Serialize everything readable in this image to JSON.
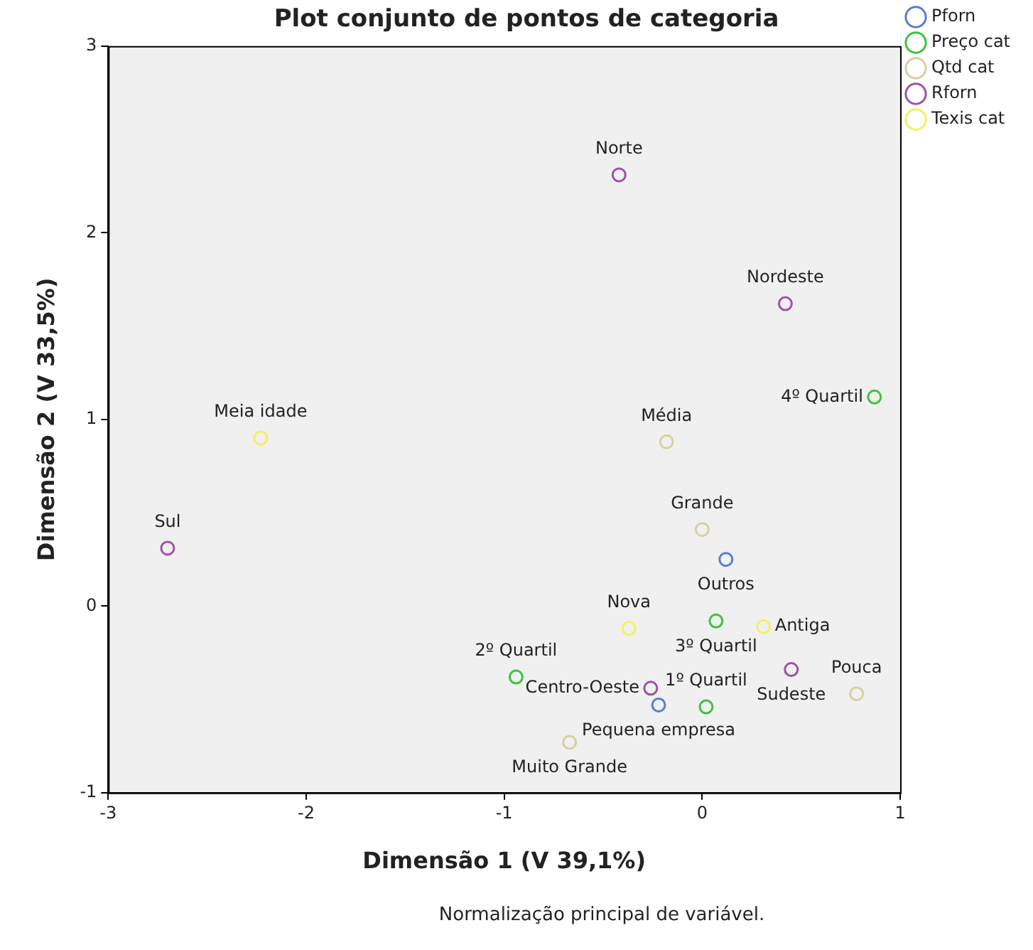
{
  "chart_data": {
    "type": "scatter",
    "title": "Plot conjunto de pontos de categoria",
    "xlabel": "Dimensão 1 (V 39,1%)",
    "ylabel": "Dimensão 2 (V 33,5%)",
    "xlim": [
      -3,
      1
    ],
    "xticks": [
      -3,
      -2,
      -1,
      0,
      1
    ],
    "ylim": [
      -1,
      3
    ],
    "yticks": [
      -1,
      0,
      1,
      2,
      3
    ],
    "grid": false,
    "legend": "top right",
    "marker": "circle",
    "series": [
      {
        "name": "Pforn",
        "color": "#5b7bd5",
        "x": [
          0.12,
          -0.22
        ],
        "values": [
          0.25,
          -0.53
        ]
      },
      {
        "name": "Preço cat",
        "color": "#3fc23f",
        "x": [
          0.87,
          0.07,
          -0.94,
          0.02
        ],
        "values": [
          1.12,
          -0.08,
          -0.38,
          -0.54
        ]
      },
      {
        "name": "Qtd cat",
        "color": "#d8cfa0",
        "x": [
          -0.18,
          0.0,
          0.78,
          -0.67
        ],
        "values": [
          0.88,
          0.41,
          -0.47,
          -0.73
        ]
      },
      {
        "name": "Rforn",
        "color": "#a050a8",
        "x": [
          -0.42,
          0.42,
          -2.7,
          0.45,
          -0.26
        ],
        "values": [
          2.31,
          1.62,
          0.31,
          -0.34,
          -0.44
        ]
      },
      {
        "name": "Texis cat",
        "color": "#f5f060",
        "x": [
          -2.23,
          -0.37,
          0.31
        ],
        "values": [
          0.9,
          -0.12,
          -0.11
        ]
      }
    ],
    "annotations": [
      {
        "text": "Outros",
        "x": 0.12,
        "y": 0.25
      },
      {
        "text": "Pequena empresa",
        "x": -0.22,
        "y": -0.53
      },
      {
        "text": "4º Quartil",
        "x": 0.87,
        "y": 1.12
      },
      {
        "text": "3º Quartil",
        "x": 0.07,
        "y": -0.08
      },
      {
        "text": "2º Quartil",
        "x": -0.94,
        "y": -0.38
      },
      {
        "text": "1º Quartil",
        "x": 0.02,
        "y": -0.54
      },
      {
        "text": "Média",
        "x": -0.18,
        "y": 0.88
      },
      {
        "text": "Grande",
        "x": 0.0,
        "y": 0.41
      },
      {
        "text": "Pouca",
        "x": 0.78,
        "y": -0.47
      },
      {
        "text": "Muito Grande",
        "x": -0.67,
        "y": -0.73
      },
      {
        "text": "Norte",
        "x": -0.42,
        "y": 2.31
      },
      {
        "text": "Nordeste",
        "x": 0.42,
        "y": 1.62
      },
      {
        "text": "Sul",
        "x": -2.7,
        "y": 0.31
      },
      {
        "text": "Sudeste",
        "x": 0.45,
        "y": -0.34
      },
      {
        "text": "Centro-Oeste",
        "x": -0.26,
        "y": -0.44
      },
      {
        "text": "Meia idade",
        "x": -2.23,
        "y": 0.9
      },
      {
        "text": "Nova",
        "x": -0.37,
        "y": -0.12
      },
      {
        "text": "Antiga",
        "x": 0.31,
        "y": -0.11
      },
      "Normalização principal de variável."
    ]
  }
}
